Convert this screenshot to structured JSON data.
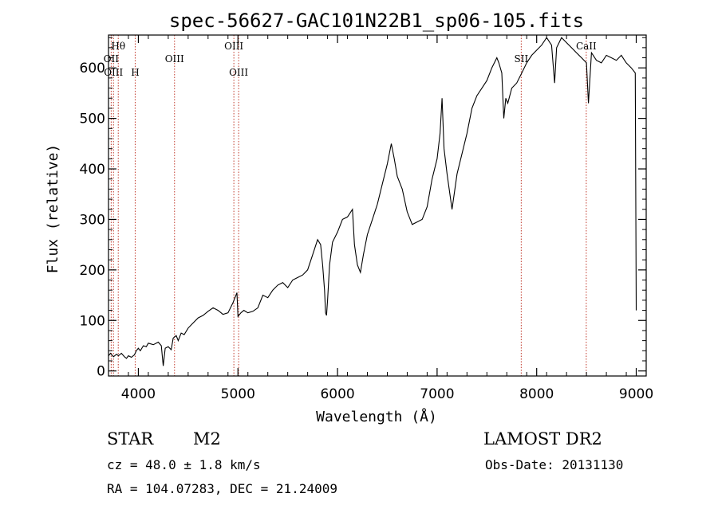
{
  "chart_data": {
    "type": "line",
    "title": "spec-56627-GAC101N22B1_sp06-105.fits",
    "xlabel": "Wavelength (Å)",
    "ylabel": "Flux (relative)",
    "xlim": [
      3700,
      9100
    ],
    "ylim": [
      -10,
      665
    ],
    "xticks": [
      4000,
      5000,
      6000,
      7000,
      8000,
      9000
    ],
    "yticks": [
      0,
      100,
      200,
      300,
      400,
      500,
      600
    ],
    "grid": false,
    "series": [
      {
        "points": [
          [
            3700,
            30
          ],
          [
            3720,
            35
          ],
          [
            3750,
            28
          ],
          [
            3780,
            33
          ],
          [
            3800,
            30
          ],
          [
            3830,
            35
          ],
          [
            3860,
            28
          ],
          [
            3880,
            25
          ],
          [
            3900,
            30
          ],
          [
            3930,
            27
          ],
          [
            3960,
            32
          ],
          [
            3980,
            40
          ],
          [
            4000,
            45
          ],
          [
            4020,
            40
          ],
          [
            4050,
            50
          ],
          [
            4080,
            48
          ],
          [
            4100,
            55
          ],
          [
            4150,
            52
          ],
          [
            4200,
            57
          ],
          [
            4230,
            50
          ],
          [
            4250,
            10
          ],
          [
            4270,
            45
          ],
          [
            4300,
            48
          ],
          [
            4330,
            42
          ],
          [
            4350,
            65
          ],
          [
            4380,
            70
          ],
          [
            4400,
            60
          ],
          [
            4430,
            75
          ],
          [
            4460,
            72
          ],
          [
            4500,
            85
          ],
          [
            4550,
            95
          ],
          [
            4600,
            105
          ],
          [
            4650,
            110
          ],
          [
            4700,
            118
          ],
          [
            4750,
            125
          ],
          [
            4800,
            120
          ],
          [
            4850,
            112
          ],
          [
            4900,
            115
          ],
          [
            4950,
            135
          ],
          [
            4990,
            155
          ],
          [
            5000,
            108
          ],
          [
            5030,
            115
          ],
          [
            5060,
            120
          ],
          [
            5100,
            115
          ],
          [
            5150,
            118
          ],
          [
            5200,
            125
          ],
          [
            5250,
            150
          ],
          [
            5300,
            145
          ],
          [
            5350,
            160
          ],
          [
            5400,
            170
          ],
          [
            5450,
            175
          ],
          [
            5500,
            165
          ],
          [
            5550,
            180
          ],
          [
            5600,
            185
          ],
          [
            5650,
            190
          ],
          [
            5700,
            200
          ],
          [
            5750,
            230
          ],
          [
            5800,
            260
          ],
          [
            5830,
            250
          ],
          [
            5850,
            210
          ],
          [
            5870,
            160
          ],
          [
            5880,
            115
          ],
          [
            5890,
            110
          ],
          [
            5900,
            140
          ],
          [
            5920,
            210
          ],
          [
            5950,
            255
          ],
          [
            6000,
            275
          ],
          [
            6050,
            300
          ],
          [
            6100,
            305
          ],
          [
            6150,
            320
          ],
          [
            6170,
            250
          ],
          [
            6200,
            210
          ],
          [
            6230,
            195
          ],
          [
            6260,
            230
          ],
          [
            6300,
            270
          ],
          [
            6350,
            300
          ],
          [
            6400,
            330
          ],
          [
            6450,
            370
          ],
          [
            6500,
            410
          ],
          [
            6540,
            450
          ],
          [
            6570,
            420
          ],
          [
            6600,
            385
          ],
          [
            6650,
            360
          ],
          [
            6700,
            315
          ],
          [
            6750,
            290
          ],
          [
            6800,
            295
          ],
          [
            6850,
            300
          ],
          [
            6900,
            325
          ],
          [
            6950,
            380
          ],
          [
            7000,
            420
          ],
          [
            7030,
            470
          ],
          [
            7050,
            540
          ],
          [
            7070,
            440
          ],
          [
            7100,
            390
          ],
          [
            7150,
            320
          ],
          [
            7200,
            390
          ],
          [
            7250,
            430
          ],
          [
            7300,
            470
          ],
          [
            7350,
            520
          ],
          [
            7400,
            545
          ],
          [
            7450,
            560
          ],
          [
            7500,
            575
          ],
          [
            7550,
            600
          ],
          [
            7600,
            620
          ],
          [
            7620,
            610
          ],
          [
            7650,
            590
          ],
          [
            7670,
            500
          ],
          [
            7690,
            540
          ],
          [
            7710,
            530
          ],
          [
            7750,
            560
          ],
          [
            7800,
            570
          ],
          [
            7850,
            590
          ],
          [
            7900,
            610
          ],
          [
            7950,
            625
          ],
          [
            8000,
            635
          ],
          [
            8050,
            645
          ],
          [
            8100,
            660
          ],
          [
            8150,
            645
          ],
          [
            8180,
            570
          ],
          [
            8200,
            640
          ],
          [
            8250,
            660
          ],
          [
            8300,
            650
          ],
          [
            8350,
            640
          ],
          [
            8400,
            630
          ],
          [
            8450,
            620
          ],
          [
            8500,
            610
          ],
          [
            8520,
            530
          ],
          [
            8550,
            630
          ],
          [
            8600,
            615
          ],
          [
            8650,
            610
          ],
          [
            8700,
            625
          ],
          [
            8750,
            620
          ],
          [
            8800,
            615
          ],
          [
            8850,
            625
          ],
          [
            8900,
            610
          ],
          [
            8950,
            600
          ],
          [
            8990,
            590
          ],
          [
            9000,
            120
          ]
        ]
      }
    ],
    "line_markers": [
      {
        "label": "Hθ",
        "wavelength": 3798,
        "row": 1
      },
      {
        "label": "OII",
        "wavelength": 3727,
        "row": 2
      },
      {
        "label": "OIII",
        "wavelength": 3750,
        "row": 3
      },
      {
        "label": "H",
        "wavelength": 3968,
        "row": 3
      },
      {
        "label": "OIII",
        "wavelength": 4363,
        "row": 2
      },
      {
        "label": "OIII",
        "wavelength": 4959,
        "row": 1
      },
      {
        "label": "OIII",
        "wavelength": 5007,
        "row": 3
      },
      {
        "label": "SII",
        "wavelength": 7845,
        "row": 2
      },
      {
        "label": "CaII",
        "wavelength": 8498,
        "row": 1
      }
    ],
    "marker_color": "#c0392b"
  },
  "info": {
    "class_label": "STAR",
    "subclass": "M2",
    "survey": "LAMOST DR2",
    "cz": "cz = 48.0 ± 1.8 km/s",
    "obs_date": "Obs-Date: 20131130",
    "coords": "RA = 104.07283, DEC =  21.24009"
  }
}
